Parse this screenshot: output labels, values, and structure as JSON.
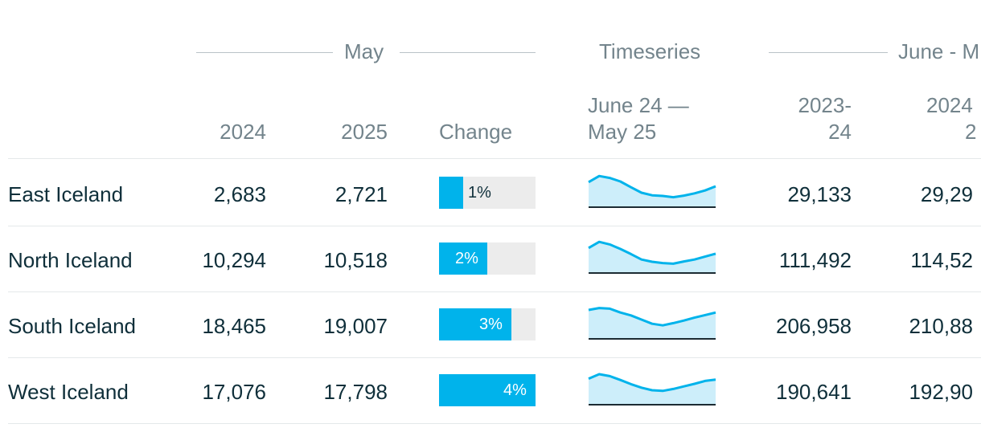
{
  "colors": {
    "accent": "#00b3eb",
    "spark_fill": "#cdeefa",
    "spark_line": "#00b3eb",
    "header_text": "#73848c",
    "body_text": "#0f2f3a"
  },
  "groups": {
    "may": "May",
    "timeseries": "Timeseries",
    "june": "June - M"
  },
  "columns": {
    "y2024": "2024",
    "y2025": "2025",
    "change": "Change",
    "ts_line1": "June 24 —",
    "ts_line2": "May 25",
    "p1_line1": "2023-",
    "p1_line2": "24",
    "p2_line1": "2024",
    "p2_line2": "2"
  },
  "rows": [
    {
      "region": "East Iceland",
      "y2024": "2,683",
      "y2025": "2,721",
      "change": "1%",
      "change_pct": 1,
      "period1": "29,133",
      "period2": "29,29"
    },
    {
      "region": "North Iceland",
      "y2024": "10,294",
      "y2025": "10,518",
      "change": "2%",
      "change_pct": 2,
      "period1": "111,492",
      "period2": "114,52"
    },
    {
      "region": "South Iceland",
      "y2024": "18,465",
      "y2025": "19,007",
      "change": "3%",
      "change_pct": 3,
      "period1": "206,958",
      "period2": "210,88"
    },
    {
      "region": "West Iceland",
      "y2024": "17,076",
      "y2025": "17,798",
      "change": "4%",
      "change_pct": 4,
      "period1": "190,641",
      "period2": "192,90"
    }
  ],
  "chart_data": {
    "type": "table",
    "change_axis_max": 4,
    "sparklines": [
      {
        "region": "East Iceland",
        "values": [
          0.78,
          0.97,
          0.91,
          0.8,
          0.62,
          0.45,
          0.37,
          0.35,
          0.31,
          0.36,
          0.43,
          0.52,
          0.65
        ]
      },
      {
        "region": "North Iceland",
        "values": [
          0.78,
          0.97,
          0.89,
          0.75,
          0.59,
          0.42,
          0.35,
          0.31,
          0.29,
          0.36,
          0.42,
          0.51,
          0.6
        ]
      },
      {
        "region": "South Iceland",
        "values": [
          0.9,
          0.96,
          0.94,
          0.82,
          0.73,
          0.6,
          0.47,
          0.42,
          0.49,
          0.57,
          0.66,
          0.74,
          0.82
        ]
      },
      {
        "region": "West Iceland",
        "values": [
          0.81,
          0.95,
          0.89,
          0.77,
          0.64,
          0.53,
          0.45,
          0.43,
          0.49,
          0.57,
          0.65,
          0.74,
          0.78
        ]
      }
    ]
  }
}
